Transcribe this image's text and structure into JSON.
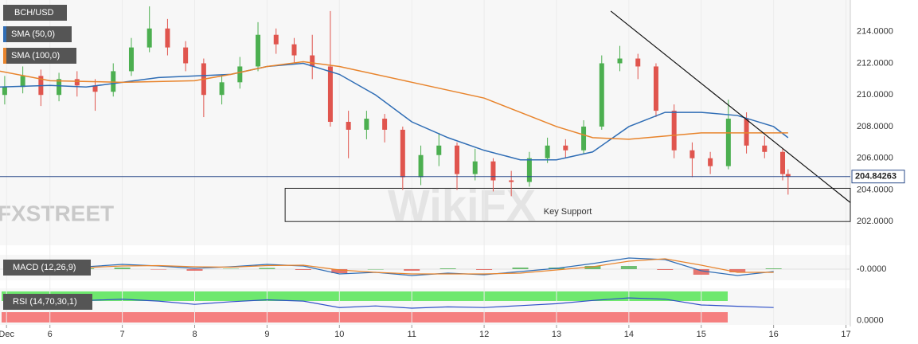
{
  "chart_data": {
    "type": "candlestick",
    "symbol": "BCH/USD",
    "logo": "FXSTREET",
    "watermark": "WikiFX",
    "xlim": [
      5.31,
      17.06
    ],
    "xticks": [
      {
        "value": 5.4,
        "label": "Dec"
      },
      6,
      7,
      8,
      9,
      10,
      11,
      12,
      13,
      14,
      15,
      16,
      17
    ],
    "ylim": [
      200.5,
      216
    ],
    "yticks": [
      {
        "value": 202,
        "label": "202.0000"
      },
      {
        "value": 204,
        "label": "204.0000"
      },
      {
        "value": 206,
        "label": "206.0000"
      },
      {
        "value": 208,
        "label": "208.0000"
      },
      {
        "value": 210,
        "label": "210.0000"
      },
      {
        "value": 212,
        "label": "212.0000"
      },
      {
        "value": 214,
        "label": "214.0000"
      }
    ],
    "grid": true,
    "up_color": "#4caf50",
    "down_color": "#e0554e",
    "last_price": 204.84263,
    "candles": {
      "x": [
        5.375,
        5.625,
        5.875,
        6.125,
        6.375,
        6.625,
        6.875,
        7.125,
        7.375,
        7.625,
        7.875,
        8.125,
        8.375,
        8.625,
        8.875,
        9.125,
        9.375,
        9.625,
        9.875,
        10.125,
        10.375,
        10.625,
        10.875,
        11.125,
        11.375,
        11.625,
        11.875,
        12.125,
        12.375,
        12.625,
        12.875,
        13.125,
        13.375,
        13.625,
        13.875,
        14.125,
        14.375,
        14.625,
        14.875,
        15.125,
        15.375,
        15.625,
        15.875,
        16.125,
        16.2
      ],
      "open": [
        210.0,
        210.5,
        211.2,
        210.0,
        211.0,
        210.6,
        210.2,
        211.5,
        213.0,
        214.2,
        213.0,
        212.0,
        210.0,
        210.8,
        211.8,
        213.8,
        213.2,
        212.5,
        211.8,
        208.3,
        207.8,
        208.5,
        207.8,
        204.8,
        206.2,
        206.8,
        205.0,
        205.8,
        204.6,
        204.5,
        206.0,
        206.8,
        206.5,
        208.0,
        212.0,
        212.3,
        211.8,
        209.0,
        206.5,
        206.0,
        205.5,
        208.5,
        206.8,
        206.4,
        205.0
      ],
      "high": [
        211.2,
        211.8,
        211.6,
        211.4,
        211.5,
        211.0,
        212.0,
        213.6,
        215.6,
        214.8,
        213.4,
        212.3,
        211.3,
        212.4,
        214.6,
        214.2,
        213.6,
        213.8,
        215.3,
        209.0,
        209.0,
        208.8,
        208.0,
        206.8,
        207.6,
        207.0,
        206.6,
        206.0,
        205.2,
        206.4,
        207.3,
        207.2,
        208.4,
        212.5,
        213.1,
        212.6,
        212.0,
        209.4,
        207.0,
        206.4,
        209.7,
        208.9,
        207.4,
        206.6,
        205.3
      ],
      "low": [
        209.4,
        210.1,
        209.3,
        209.6,
        209.9,
        209.0,
        209.9,
        211.2,
        212.7,
        212.5,
        211.5,
        208.6,
        209.4,
        210.4,
        211.5,
        212.6,
        212.0,
        211.0,
        208.0,
        206.0,
        207.2,
        207.0,
        204.0,
        204.3,
        205.5,
        204.0,
        204.6,
        203.9,
        203.6,
        204.2,
        205.7,
        206.0,
        206.3,
        207.8,
        211.5,
        211.0,
        208.6,
        206.0,
        204.8,
        205.0,
        205.3,
        206.3,
        206.0,
        204.6,
        203.7
      ],
      "close": [
        210.5,
        211.2,
        210.0,
        211.0,
        210.6,
        210.2,
        211.5,
        213.0,
        214.2,
        213.0,
        212.0,
        210.0,
        210.8,
        211.8,
        213.8,
        213.2,
        212.5,
        211.8,
        208.3,
        207.8,
        208.5,
        207.8,
        204.8,
        206.2,
        206.8,
        205.0,
        205.8,
        204.6,
        204.5,
        206.0,
        206.8,
        206.5,
        208.0,
        212.0,
        212.3,
        211.8,
        209.0,
        206.5,
        206.0,
        205.5,
        208.5,
        206.8,
        206.4,
        205.0,
        204.84263
      ]
    },
    "series": [
      {
        "name": "SMA (50,0)",
        "color": "#2f6db5",
        "x": [
          5.31,
          6,
          6.5,
          7,
          7.5,
          8,
          8.5,
          9,
          9.5,
          10,
          10.5,
          11,
          11.5,
          12,
          12.5,
          13,
          13.5,
          14,
          14.5,
          15,
          15.5,
          16,
          16.2
        ],
        "values": [
          210.5,
          210.6,
          210.5,
          210.8,
          211.1,
          211.2,
          211.3,
          211.8,
          212.0,
          211.3,
          210.0,
          208.3,
          207.3,
          206.5,
          205.9,
          205.9,
          206.4,
          208.0,
          208.9,
          208.9,
          208.7,
          208.0,
          207.3
        ]
      },
      {
        "name": "SMA (100,0)",
        "color": "#e8842c",
        "x": [
          5.31,
          6,
          7,
          8,
          8.5,
          9,
          9.5,
          10,
          11,
          12,
          12.5,
          13,
          13.5,
          14,
          14.5,
          15,
          16,
          16.2
        ],
        "values": [
          211.5,
          210.9,
          210.8,
          210.9,
          211.3,
          211.8,
          212.1,
          211.8,
          210.8,
          209.8,
          208.9,
          208.0,
          207.3,
          207.2,
          207.4,
          207.6,
          207.6,
          207.6
        ]
      }
    ],
    "trendline": {
      "x": [
        13.75,
        17.06
      ],
      "values": [
        215.3,
        203.2
      ]
    },
    "support_zone": {
      "label": "Key Support",
      "x": [
        9.25,
        17.06
      ],
      "values": [
        202.0,
        204.1
      ]
    },
    "macd": {
      "label": "MACD (12,26,9)",
      "ylim": [
        -1.2,
        1.6
      ],
      "yticks": [
        {
          "value": 0,
          "label": "-0.0000"
        }
      ],
      "x": [
        5.5,
        6,
        6.5,
        7,
        7.5,
        8,
        8.5,
        9,
        9.5,
        10,
        10.5,
        11,
        11.5,
        12,
        12.5,
        13,
        13.5,
        14,
        14.5,
        15,
        15.5,
        16
      ],
      "macd": [
        0.2,
        0.1,
        0.3,
        0.6,
        0.4,
        0.1,
        0.3,
        0.6,
        0.4,
        -0.6,
        -0.4,
        -0.8,
        -0.5,
        -0.7,
        -0.3,
        0.1,
        0.7,
        1.4,
        1.2,
        -0.2,
        -0.8,
        -0.3
      ],
      "signal": [
        0.1,
        0.15,
        0.2,
        0.4,
        0.45,
        0.3,
        0.25,
        0.45,
        0.5,
        -0.1,
        -0.4,
        -0.6,
        -0.6,
        -0.6,
        -0.5,
        -0.1,
        0.3,
        1.0,
        1.3,
        0.5,
        -0.4,
        -0.4
      ],
      "histogram": [
        0.1,
        -0.05,
        0.1,
        0.2,
        -0.05,
        -0.2,
        0.05,
        0.15,
        -0.1,
        -0.5,
        0,
        -0.2,
        0.1,
        -0.1,
        0.2,
        0.2,
        0.4,
        0.4,
        -0.1,
        -0.7,
        -0.4,
        0.1
      ]
    },
    "rsi": {
      "label": "RSI (14,70,30,1)",
      "ylim": [
        -14,
        100
      ],
      "yticks": [
        {
          "value": 0,
          "label": "0.0000"
        }
      ],
      "x": [
        5.5,
        6,
        6.5,
        7,
        7.5,
        8,
        8.5,
        9,
        9.5,
        10,
        10.5,
        11,
        11.5,
        12,
        12.5,
        13,
        13.5,
        14,
        14.5,
        15,
        15.5,
        16
      ],
      "values": [
        60,
        58,
        62,
        66,
        60,
        50,
        58,
        64,
        60,
        40,
        45,
        38,
        42,
        40,
        46,
        52,
        62,
        70,
        66,
        48,
        44,
        40
      ]
    }
  }
}
